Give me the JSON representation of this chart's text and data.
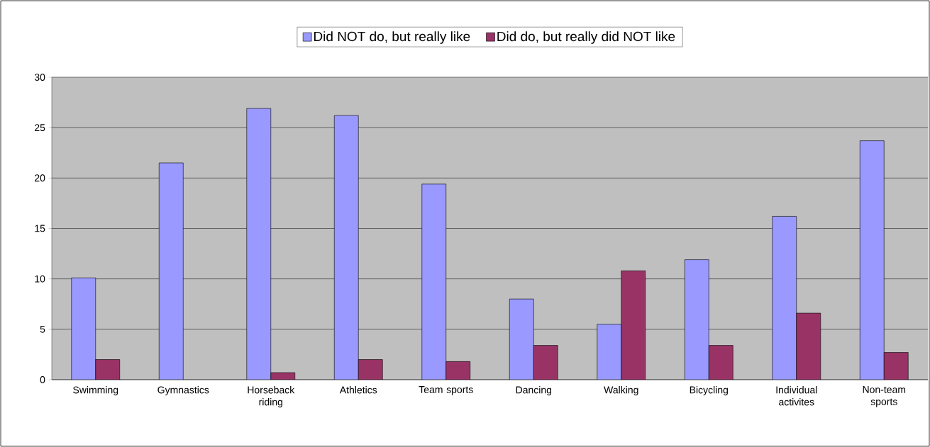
{
  "chart_data": {
    "type": "bar",
    "categories": [
      "Swimming",
      "Gymnastics",
      "Horseback riding",
      "Athletics",
      "Team sports",
      "Dancing",
      "Walking",
      "Bicycling",
      "Individual activites",
      "Non-team sports"
    ],
    "series": [
      {
        "name": "Did NOT do, but really like",
        "color": "#9999ff",
        "values": [
          10.1,
          21.5,
          26.9,
          26.2,
          19.4,
          8.0,
          5.5,
          11.9,
          16.2,
          23.7
        ]
      },
      {
        "name": "Did do, but really did NOT like",
        "color": "#993366",
        "values": [
          2.0,
          null,
          0.7,
          2.0,
          1.8,
          3.4,
          10.8,
          3.4,
          6.6,
          2.7
        ]
      }
    ],
    "ylim": [
      0,
      30
    ],
    "yticks": [
      0,
      5,
      10,
      15,
      20,
      25,
      30
    ],
    "grid": "y",
    "legend": "top"
  }
}
